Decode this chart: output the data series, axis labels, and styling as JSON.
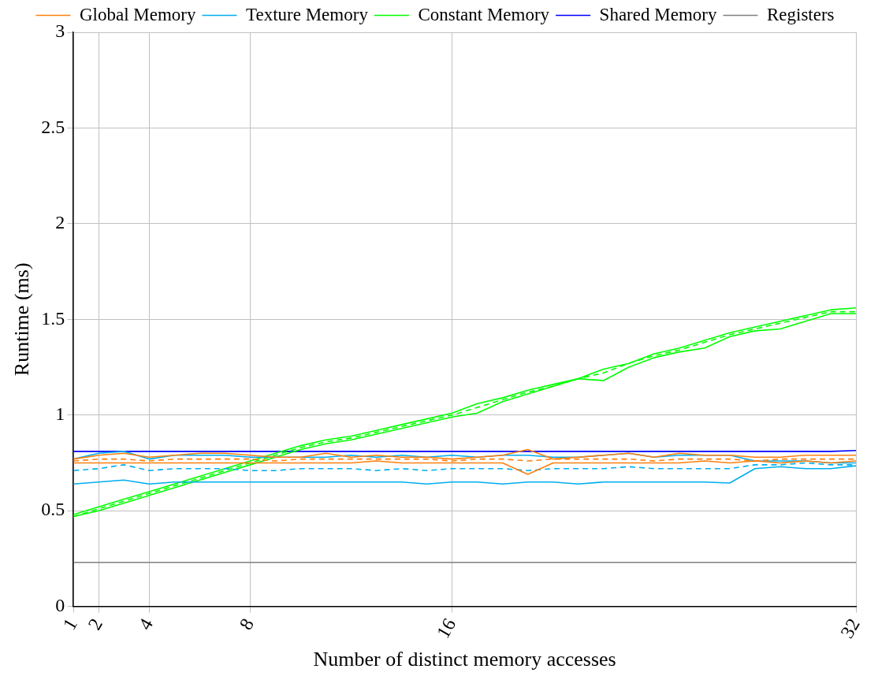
{
  "chart_data": {
    "type": "line",
    "xlabel": "Number of distinct memory accesses",
    "ylabel": "Runtime (ms)",
    "x": [
      1,
      2,
      3,
      4,
      5,
      6,
      7,
      8,
      9,
      10,
      11,
      12,
      13,
      14,
      15,
      16,
      17,
      18,
      19,
      20,
      21,
      22,
      23,
      24,
      25,
      26,
      27,
      28,
      29,
      30,
      31,
      32
    ],
    "xlim": [
      1,
      32
    ],
    "xticks": [
      1,
      2,
      4,
      8,
      16,
      32
    ],
    "ylim": [
      0,
      3
    ],
    "yticks": [
      0,
      0.5,
      1,
      1.5,
      2,
      2.5,
      3
    ],
    "grid": true,
    "legend": "top",
    "marker": "none",
    "series": [
      {
        "name": "Global Memory",
        "color": "#ff7f0e",
        "line_style": "solid",
        "values": [
          0.77,
          0.79,
          0.8,
          0.78,
          0.79,
          0.8,
          0.8,
          0.79,
          0.78,
          0.78,
          0.8,
          0.78,
          0.79,
          0.78,
          0.78,
          0.77,
          0.78,
          0.79,
          0.82,
          0.77,
          0.78,
          0.79,
          0.8,
          0.78,
          0.8,
          0.79,
          0.79,
          0.78,
          0.78,
          0.79,
          0.79,
          0.79
        ]
      },
      {
        "color": "#ff7f0e",
        "line_style": "dashed",
        "values": [
          0.76,
          0.77,
          0.77,
          0.76,
          0.77,
          0.77,
          0.77,
          0.77,
          0.76,
          0.77,
          0.77,
          0.77,
          0.77,
          0.77,
          0.77,
          0.76,
          0.77,
          0.77,
          0.76,
          0.77,
          0.77,
          0.77,
          0.77,
          0.76,
          0.77,
          0.77,
          0.77,
          0.76,
          0.77,
          0.77,
          0.77,
          0.77
        ]
      },
      {
        "color": "#ff7f0e",
        "line_style": "solid",
        "values": [
          0.75,
          0.75,
          0.75,
          0.75,
          0.75,
          0.75,
          0.75,
          0.75,
          0.75,
          0.75,
          0.75,
          0.75,
          0.76,
          0.75,
          0.75,
          0.75,
          0.75,
          0.75,
          0.69,
          0.75,
          0.75,
          0.75,
          0.75,
          0.75,
          0.75,
          0.76,
          0.75,
          0.76,
          0.75,
          0.76,
          0.75,
          0.76
        ]
      },
      {
        "name": "Texture Memory",
        "color": "#00aeef",
        "line_style": "solid",
        "values": [
          0.77,
          0.8,
          0.81,
          0.77,
          0.79,
          0.79,
          0.79,
          0.78,
          0.78,
          0.78,
          0.78,
          0.79,
          0.78,
          0.79,
          0.78,
          0.79,
          0.78,
          0.79,
          0.79,
          0.78,
          0.78,
          0.79,
          0.8,
          0.78,
          0.79,
          0.79,
          0.79,
          0.76,
          0.76,
          0.76,
          0.75,
          0.75
        ]
      },
      {
        "color": "#00aeef",
        "line_style": "dashed",
        "values": [
          0.71,
          0.72,
          0.74,
          0.71,
          0.72,
          0.72,
          0.72,
          0.71,
          0.71,
          0.72,
          0.72,
          0.72,
          0.71,
          0.72,
          0.71,
          0.72,
          0.72,
          0.72,
          0.71,
          0.72,
          0.72,
          0.72,
          0.73,
          0.72,
          0.72,
          0.72,
          0.72,
          0.74,
          0.74,
          0.75,
          0.74,
          0.74
        ]
      },
      {
        "color": "#00aeef",
        "line_style": "solid",
        "values": [
          0.64,
          0.65,
          0.66,
          0.64,
          0.65,
          0.65,
          0.65,
          0.65,
          0.65,
          0.65,
          0.65,
          0.65,
          0.65,
          0.65,
          0.64,
          0.65,
          0.65,
          0.64,
          0.65,
          0.65,
          0.64,
          0.65,
          0.65,
          0.65,
          0.65,
          0.65,
          0.645,
          0.72,
          0.73,
          0.72,
          0.72,
          0.735
        ]
      },
      {
        "name": "Constant Memory",
        "color": "#00ff00",
        "line_style": "solid",
        "values": [
          0.48,
          0.52,
          0.56,
          0.6,
          0.64,
          0.68,
          0.72,
          0.76,
          0.8,
          0.84,
          0.87,
          0.89,
          0.92,
          0.95,
          0.98,
          1.01,
          1.06,
          1.09,
          1.13,
          1.16,
          1.19,
          1.24,
          1.27,
          1.32,
          1.35,
          1.39,
          1.43,
          1.46,
          1.49,
          1.52,
          1.55,
          1.56
        ]
      },
      {
        "color": "#00ff00",
        "line_style": "dashed",
        "values": [
          0.47,
          0.51,
          0.55,
          0.59,
          0.63,
          0.67,
          0.71,
          0.75,
          0.79,
          0.83,
          0.86,
          0.88,
          0.91,
          0.94,
          0.97,
          1.0,
          1.04,
          1.08,
          1.12,
          1.15,
          1.19,
          1.22,
          1.27,
          1.31,
          1.34,
          1.38,
          1.42,
          1.45,
          1.48,
          1.51,
          1.54,
          1.54
        ]
      },
      {
        "color": "#00ff00",
        "line_style": "solid",
        "values": [
          0.47,
          0.5,
          0.54,
          0.58,
          0.62,
          0.66,
          0.7,
          0.74,
          0.78,
          0.82,
          0.85,
          0.87,
          0.9,
          0.93,
          0.96,
          0.99,
          1.01,
          1.07,
          1.11,
          1.15,
          1.19,
          1.18,
          1.25,
          1.3,
          1.33,
          1.35,
          1.41,
          1.44,
          1.45,
          1.49,
          1.53,
          1.53
        ]
      },
      {
        "name": "Shared Memory",
        "color": "#0000ff",
        "line_style": "solid",
        "values": [
          0.81,
          0.81,
          0.81,
          0.81,
          0.81,
          0.81,
          0.81,
          0.81,
          0.81,
          0.81,
          0.81,
          0.81,
          0.81,
          0.81,
          0.81,
          0.81,
          0.81,
          0.81,
          0.81,
          0.81,
          0.81,
          0.81,
          0.81,
          0.81,
          0.81,
          0.81,
          0.81,
          0.81,
          0.81,
          0.81,
          0.81,
          0.815
        ]
      },
      {
        "name": "Registers",
        "color": "#808080",
        "line_style": "solid",
        "values": [
          0.23,
          0.23,
          0.23,
          0.23,
          0.23,
          0.23,
          0.23,
          0.23,
          0.23,
          0.23,
          0.23,
          0.23,
          0.23,
          0.23,
          0.23,
          0.23,
          0.23,
          0.23,
          0.23,
          0.23,
          0.23,
          0.23,
          0.23,
          0.23,
          0.23,
          0.23,
          0.23,
          0.23,
          0.23,
          0.23,
          0.23,
          0.23
        ]
      }
    ]
  }
}
